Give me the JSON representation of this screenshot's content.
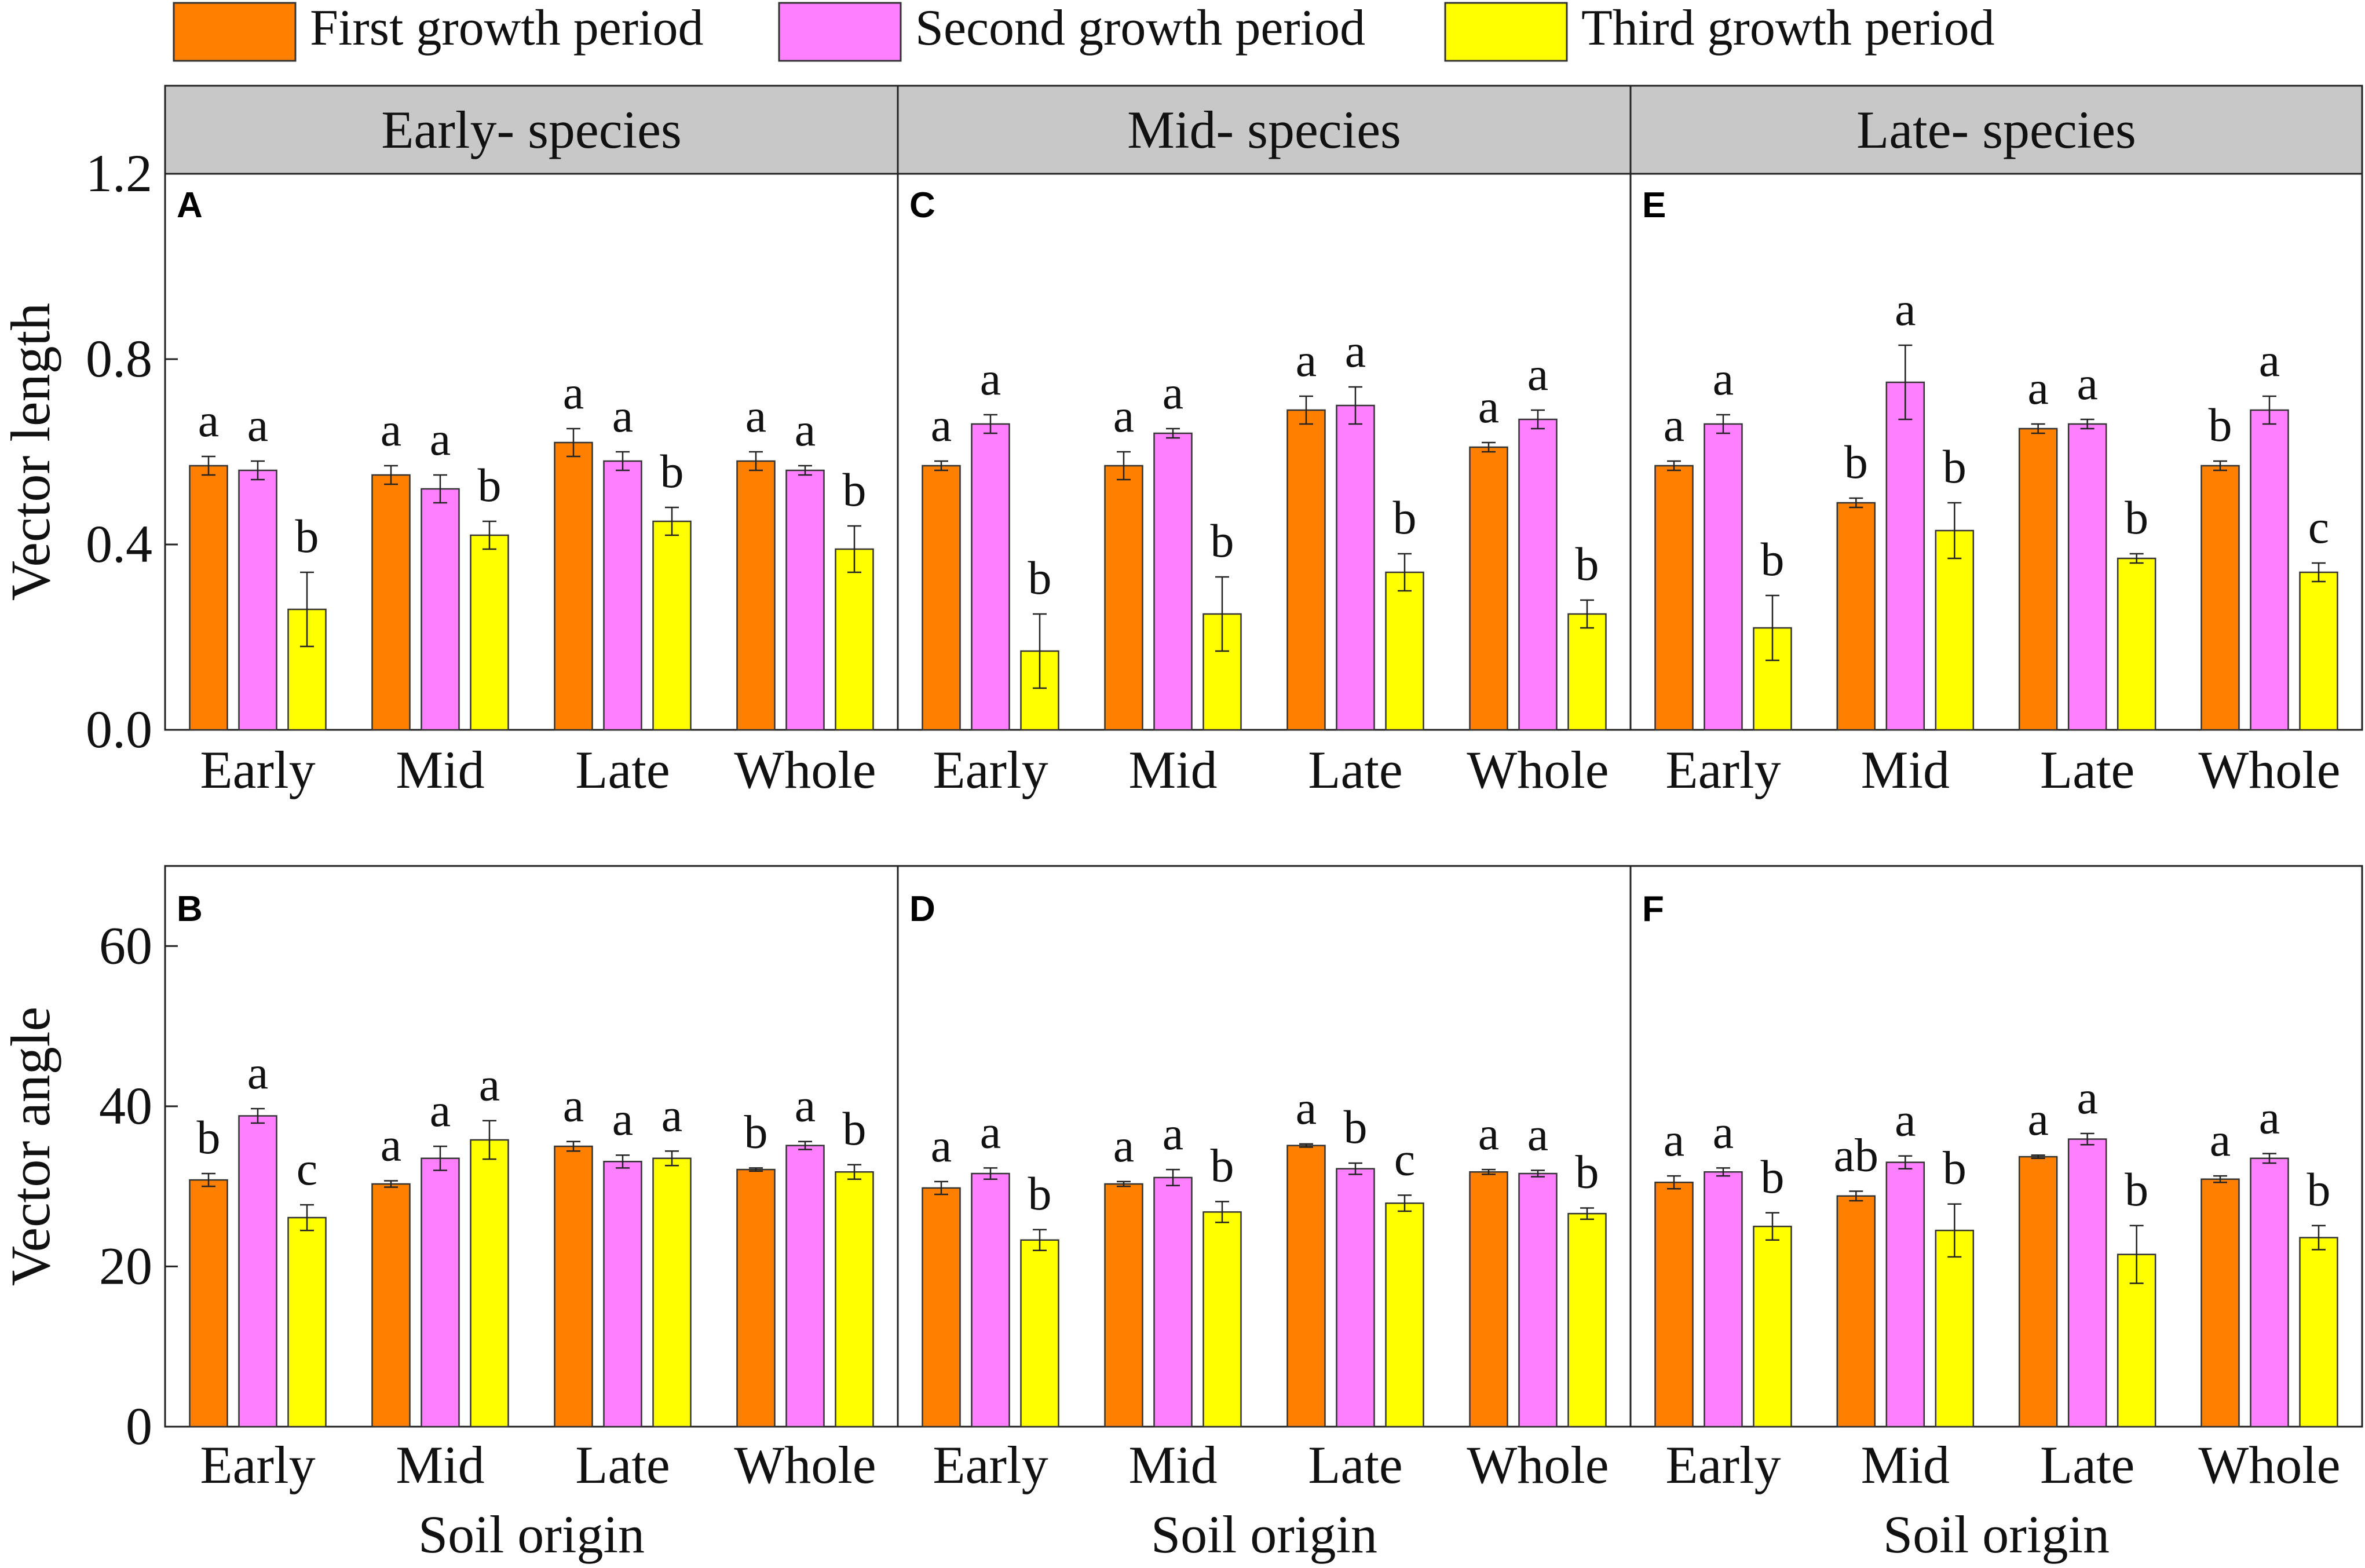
{
  "legend": {
    "series": [
      {
        "name": "First growth period",
        "color": "#FF8000"
      },
      {
        "name": "Second growth period",
        "color": "#FF80FF"
      },
      {
        "name": "Third growth period",
        "color": "#FFFF00"
      }
    ]
  },
  "facets": [
    "Early- species",
    "Mid- species",
    "Late- species"
  ],
  "xlabel": "Soil origin",
  "chart_data": [
    {
      "type": "bar",
      "panel": "A",
      "facet": "Early- species",
      "ylabel": "Vector length",
      "ylim": [
        0,
        1.2
      ],
      "yticks": [
        "0.0",
        "0.4",
        "0.8",
        "1.2"
      ],
      "categories": [
        "Early",
        "Mid",
        "Late",
        "Whole"
      ],
      "series": [
        {
          "name": "First growth period",
          "values": [
            0.57,
            0.55,
            0.62,
            0.58
          ],
          "errors": [
            0.02,
            0.02,
            0.03,
            0.02
          ],
          "letters": [
            "a",
            "a",
            "a",
            "a"
          ]
        },
        {
          "name": "Second growth period",
          "values": [
            0.56,
            0.52,
            0.58,
            0.56
          ],
          "errors": [
            0.02,
            0.03,
            0.02,
            0.01
          ],
          "letters": [
            "a",
            "a",
            "a",
            "a"
          ]
        },
        {
          "name": "Third growth period",
          "values": [
            0.26,
            0.42,
            0.45,
            0.39
          ],
          "errors": [
            0.08,
            0.03,
            0.03,
            0.05
          ],
          "letters": [
            "b",
            "b",
            "b",
            "b"
          ]
        }
      ]
    },
    {
      "type": "bar",
      "panel": "C",
      "facet": "Mid- species",
      "ylabel": "Vector length",
      "ylim": [
        0,
        1.2
      ],
      "yticks": [
        "0.0",
        "0.4",
        "0.8",
        "1.2"
      ],
      "categories": [
        "Early",
        "Mid",
        "Late",
        "Whole"
      ],
      "series": [
        {
          "name": "First growth period",
          "values": [
            0.57,
            0.57,
            0.69,
            0.61
          ],
          "errors": [
            0.01,
            0.03,
            0.03,
            0.01
          ],
          "letters": [
            "a",
            "a",
            "a",
            "a"
          ]
        },
        {
          "name": "Second growth period",
          "values": [
            0.66,
            0.64,
            0.7,
            0.67
          ],
          "errors": [
            0.02,
            0.01,
            0.04,
            0.02
          ],
          "letters": [
            "a",
            "a",
            "a",
            "a"
          ]
        },
        {
          "name": "Third growth period",
          "values": [
            0.17,
            0.25,
            0.34,
            0.25
          ],
          "errors": [
            0.08,
            0.08,
            0.04,
            0.03
          ],
          "letters": [
            "b",
            "b",
            "b",
            "b"
          ]
        }
      ]
    },
    {
      "type": "bar",
      "panel": "E",
      "facet": "Late- species",
      "ylabel": "Vector length",
      "ylim": [
        0,
        1.2
      ],
      "yticks": [
        "0.0",
        "0.4",
        "0.8",
        "1.2"
      ],
      "categories": [
        "Early",
        "Mid",
        "Late",
        "Whole"
      ],
      "series": [
        {
          "name": "First growth period",
          "values": [
            0.57,
            0.49,
            0.65,
            0.57
          ],
          "errors": [
            0.01,
            0.01,
            0.01,
            0.01
          ],
          "letters": [
            "a",
            "b",
            "a",
            "b"
          ]
        },
        {
          "name": "Second growth period",
          "values": [
            0.66,
            0.75,
            0.66,
            0.69
          ],
          "errors": [
            0.02,
            0.08,
            0.01,
            0.03
          ],
          "letters": [
            "a",
            "a",
            "a",
            "a"
          ]
        },
        {
          "name": "Third growth period",
          "values": [
            0.22,
            0.43,
            0.37,
            0.34
          ],
          "errors": [
            0.07,
            0.06,
            0.01,
            0.02
          ],
          "letters": [
            "b",
            "b",
            "b",
            "c"
          ]
        }
      ]
    },
    {
      "type": "bar",
      "panel": "B",
      "facet": "Early- species",
      "ylabel": "Vector angle",
      "ylim": [
        0,
        70
      ],
      "yticks": [
        "0",
        "20",
        "40",
        "60"
      ],
      "categories": [
        "Early",
        "Mid",
        "Late",
        "Whole"
      ],
      "series": [
        {
          "name": "First growth period",
          "values": [
            30.8,
            30.3,
            35.0,
            32.1
          ],
          "errors": [
            0.8,
            0.4,
            0.6,
            0.2
          ],
          "letters": [
            "b",
            "a",
            "a",
            "b"
          ]
        },
        {
          "name": "Second growth period",
          "values": [
            38.8,
            33.5,
            33.1,
            35.1
          ],
          "errors": [
            0.9,
            1.5,
            0.8,
            0.5
          ],
          "letters": [
            "a",
            "a",
            "a",
            "a"
          ]
        },
        {
          "name": "Third growth period",
          "values": [
            26.1,
            35.8,
            33.5,
            31.8
          ],
          "errors": [
            1.6,
            2.4,
            0.9,
            0.9
          ],
          "letters": [
            "c",
            "a",
            "a",
            "b"
          ]
        }
      ]
    },
    {
      "type": "bar",
      "panel": "D",
      "facet": "Mid- species",
      "ylabel": "Vector angle",
      "ylim": [
        0,
        70
      ],
      "yticks": [
        "0",
        "20",
        "40",
        "60"
      ],
      "categories": [
        "Early",
        "Mid",
        "Late",
        "Whole"
      ],
      "series": [
        {
          "name": "First growth period",
          "values": [
            29.8,
            30.3,
            35.1,
            31.8
          ],
          "errors": [
            0.8,
            0.3,
            0.2,
            0.3
          ],
          "letters": [
            "a",
            "a",
            "a",
            "a"
          ]
        },
        {
          "name": "Second growth period",
          "values": [
            31.6,
            31.1,
            32.2,
            31.6
          ],
          "errors": [
            0.7,
            1.0,
            0.7,
            0.4
          ],
          "letters": [
            "a",
            "a",
            "b",
            "a"
          ]
        },
        {
          "name": "Third growth period",
          "values": [
            23.3,
            26.8,
            27.9,
            26.6
          ],
          "errors": [
            1.3,
            1.3,
            1.0,
            0.7
          ],
          "letters": [
            "b",
            "b",
            "c",
            "b"
          ]
        }
      ]
    },
    {
      "type": "bar",
      "panel": "F",
      "facet": "Late- species",
      "ylabel": "Vector angle",
      "ylim": [
        0,
        70
      ],
      "yticks": [
        "0",
        "20",
        "40",
        "60"
      ],
      "categories": [
        "Early",
        "Mid",
        "Late",
        "Whole"
      ],
      "series": [
        {
          "name": "First growth period",
          "values": [
            30.5,
            28.8,
            33.7,
            30.9
          ],
          "errors": [
            0.8,
            0.6,
            0.2,
            0.4
          ],
          "letters": [
            "a",
            "ab",
            "a",
            "a"
          ]
        },
        {
          "name": "Second growth period",
          "values": [
            31.8,
            33.0,
            35.9,
            33.5
          ],
          "errors": [
            0.5,
            0.8,
            0.7,
            0.6
          ],
          "letters": [
            "a",
            "a",
            "a",
            "a"
          ]
        },
        {
          "name": "Third growth period",
          "values": [
            25.0,
            24.5,
            21.5,
            23.6
          ],
          "errors": [
            1.7,
            3.3,
            3.6,
            1.5
          ],
          "letters": [
            "b",
            "b",
            "b",
            "b"
          ]
        }
      ]
    }
  ]
}
